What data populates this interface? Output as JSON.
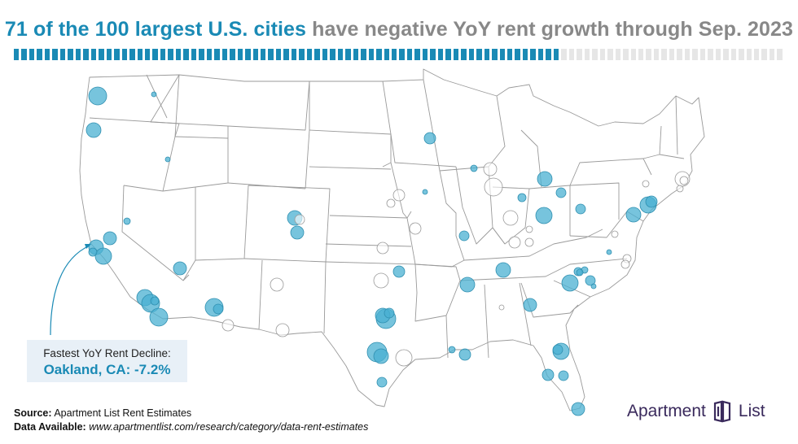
{
  "title": {
    "highlight": "71 of the 100 largest U.S. cities",
    "rest": "have negative YoY rent growth through Sep. 2023"
  },
  "progress": {
    "negative_count": 71,
    "total": 100
  },
  "colors": {
    "accent": "#1a8ab5",
    "negative_fill": "#4ab0d1",
    "positive_stroke": "#999999",
    "state_lines": "#9a9a9a",
    "callout_bg": "#e8f0f7",
    "title_grey": "#888888",
    "brand": "#3a2a5c"
  },
  "callout": {
    "label": "Fastest YoY Rent Decline:",
    "value": "Oakland, CA: -7.2%"
  },
  "footer": {
    "source_label": "Source:",
    "source_text": "Apartment List Rent Estimates",
    "data_label": "Data Available:",
    "data_url": "www.apartmentlist.com/research/category/data-rent-estimates"
  },
  "logo": {
    "left": "Apartment",
    "right": "List",
    "icon": "apartment-list-logo-icon"
  },
  "legend_encoding": {
    "filled_blue": "negative YoY rent growth",
    "hollow_grey": "positive YoY rent growth"
  }
}
